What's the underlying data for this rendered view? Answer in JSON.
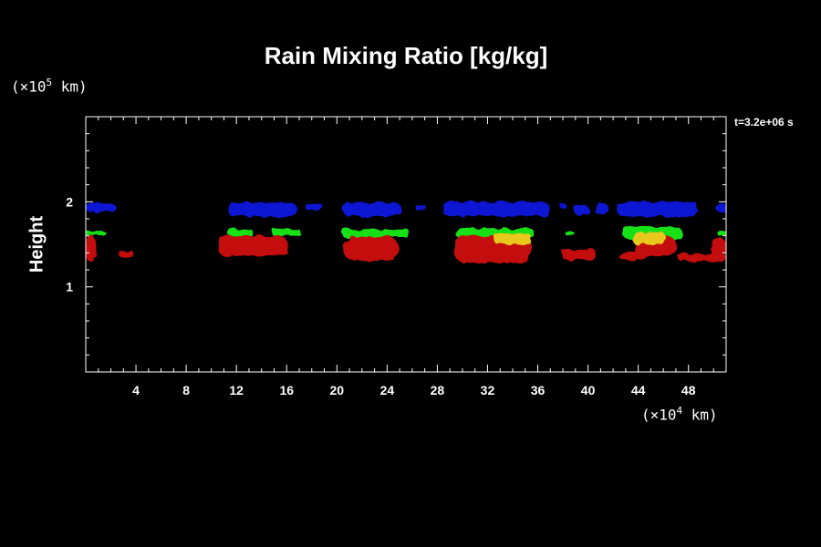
{
  "chart_data": {
    "type": "heatmap",
    "title": "Rain Mixing Ratio [kg/kg]",
    "ylabel": "Height",
    "y_unit_prefix": "(×10",
    "y_unit_exp": "5",
    "y_unit_suffix": " km)",
    "x_unit_prefix": "(×10",
    "x_unit_exp": "4",
    "x_unit_suffix": " km)",
    "time_label": "t=3.2e+06 s",
    "xlim": [
      0,
      51
    ],
    "ylim": [
      0,
      3
    ],
    "xticks": [
      4,
      8,
      12,
      16,
      20,
      24,
      28,
      32,
      36,
      40,
      44,
      48
    ],
    "yticks": [
      1,
      2
    ],
    "grid": false,
    "colors": {
      "blue": "#0a14d2",
      "green": "#18e018",
      "yellow": "#e8c81c",
      "red": "#c40e0e"
    },
    "regions": [
      {
        "level": "blue",
        "x": [
          0,
          2.4
        ],
        "y": [
          1.88,
          1.98
        ]
      },
      {
        "level": "blue",
        "x": [
          11.3,
          16.8
        ],
        "y": [
          1.83,
          1.99
        ]
      },
      {
        "level": "blue",
        "x": [
          17.5,
          18.9
        ],
        "y": [
          1.9,
          1.97
        ]
      },
      {
        "level": "blue",
        "x": [
          20.5,
          25.1
        ],
        "y": [
          1.83,
          1.99
        ]
      },
      {
        "level": "blue",
        "x": [
          26.2,
          27.1
        ],
        "y": [
          1.9,
          1.97
        ]
      },
      {
        "level": "blue",
        "x": [
          28.4,
          36.9
        ],
        "y": [
          1.83,
          2.0
        ]
      },
      {
        "level": "blue",
        "x": [
          37.8,
          38.3
        ],
        "y": [
          1.92,
          1.97
        ]
      },
      {
        "level": "blue",
        "x": [
          38.9,
          40.1
        ],
        "y": [
          1.85,
          1.95
        ]
      },
      {
        "level": "blue",
        "x": [
          40.5,
          41.6
        ],
        "y": [
          1.85,
          1.99
        ]
      },
      {
        "level": "blue",
        "x": [
          42.3,
          48.8
        ],
        "y": [
          1.83,
          2.0
        ]
      },
      {
        "level": "blue",
        "x": [
          50.2,
          51
        ],
        "y": [
          1.88,
          1.98
        ]
      },
      {
        "level": "green",
        "x": [
          0,
          1.6
        ],
        "y": [
          1.6,
          1.66
        ]
      },
      {
        "level": "green",
        "x": [
          11.3,
          13.3
        ],
        "y": [
          1.6,
          1.68
        ]
      },
      {
        "level": "green",
        "x": [
          14.8,
          17.1
        ],
        "y": [
          1.6,
          1.68
        ]
      },
      {
        "level": "green",
        "x": [
          20.4,
          25.8
        ],
        "y": [
          1.58,
          1.68
        ]
      },
      {
        "level": "green",
        "x": [
          29.5,
          35.7
        ],
        "y": [
          1.57,
          1.69
        ]
      },
      {
        "level": "green",
        "x": [
          38.2,
          38.9
        ],
        "y": [
          1.6,
          1.65
        ]
      },
      {
        "level": "green",
        "x": [
          42.8,
          47.5
        ],
        "y": [
          1.56,
          1.7
        ]
      },
      {
        "level": "green",
        "x": [
          50.3,
          51
        ],
        "y": [
          1.6,
          1.66
        ]
      },
      {
        "level": "yellow",
        "x": [
          32.5,
          35.5
        ],
        "y": [
          1.5,
          1.63
        ]
      },
      {
        "level": "yellow",
        "x": [
          43.5,
          46.2
        ],
        "y": [
          1.5,
          1.64
        ]
      },
      {
        "level": "red",
        "x": [
          0,
          0.9
        ],
        "y": [
          1.29,
          1.6
        ]
      },
      {
        "level": "red",
        "x": [
          2.6,
          3.8
        ],
        "y": [
          1.36,
          1.42
        ]
      },
      {
        "level": "red",
        "x": [
          10.5,
          16.1
        ],
        "y": [
          1.36,
          1.6
        ]
      },
      {
        "level": "red",
        "x": [
          20.5,
          24.9
        ],
        "y": [
          1.31,
          1.59
        ]
      },
      {
        "level": "red",
        "x": [
          29.3,
          35.5
        ],
        "y": [
          1.28,
          1.6
        ]
      },
      {
        "level": "red",
        "x": [
          37.9,
          40.7
        ],
        "y": [
          1.32,
          1.44
        ]
      },
      {
        "level": "red",
        "x": [
          42.5,
          44.5
        ],
        "y": [
          1.32,
          1.41
        ]
      },
      {
        "level": "red",
        "x": [
          43.7,
          47.0
        ],
        "y": [
          1.36,
          1.6
        ]
      },
      {
        "level": "red",
        "x": [
          47.2,
          51
        ],
        "y": [
          1.3,
          1.39
        ]
      },
      {
        "level": "red",
        "x": [
          49.8,
          51
        ],
        "y": [
          1.36,
          1.58
        ]
      }
    ]
  }
}
